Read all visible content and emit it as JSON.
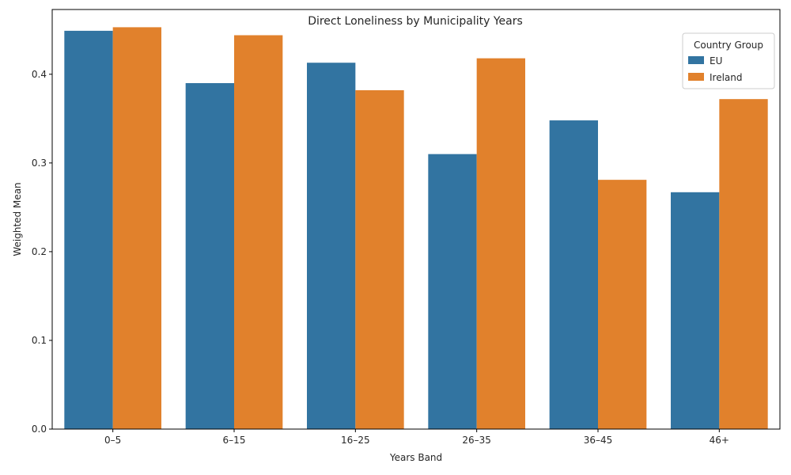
{
  "chart_data": {
    "type": "bar",
    "title": "Direct Loneliness by Municipality Years",
    "xlabel": "Years Band",
    "ylabel": "Weighted Mean",
    "categories": [
      "0–5",
      "6–15",
      "16–25",
      "26–35",
      "36–45",
      "46+"
    ],
    "series": [
      {
        "name": "EU",
        "color": "#3274a1",
        "values": [
          0.449,
          0.39,
          0.413,
          0.31,
          0.348,
          0.267
        ]
      },
      {
        "name": "Ireland",
        "color": "#e1812c",
        "values": [
          0.453,
          0.444,
          0.382,
          0.418,
          0.281,
          0.372
        ]
      }
    ],
    "ylim": [
      0,
      0.473
    ],
    "yticks": [
      0.0,
      0.1,
      0.2,
      0.3,
      0.4
    ],
    "ytick_labels": [
      "0.0",
      "0.1",
      "0.2",
      "0.3",
      "0.4"
    ],
    "legend": {
      "title": "Country Group",
      "position": "top-right"
    },
    "grid": false
  }
}
